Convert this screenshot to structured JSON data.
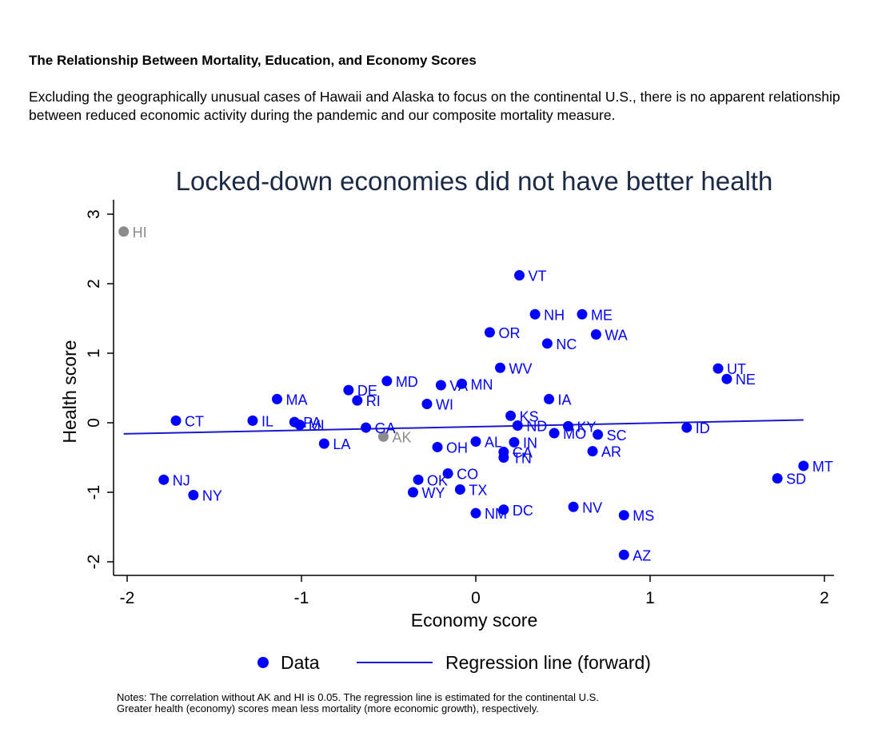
{
  "heading": "The Relationship Between Mortality, Education, and Economy Scores",
  "intro": "Excluding the geographically  unusual cases of Hawaii and Alaska to focus on the continental U.S., there is no apparent relationship between reduced economic activity during the pandemic and our composite mortality measure.",
  "colors": {
    "data": "#0000ff",
    "excluded": "#8c8c8c",
    "line": "#1a1acc",
    "title": "#1a2a44"
  },
  "chart_data": {
    "type": "scatter",
    "title": "Locked-down economies did not have better health",
    "xlabel": "Economy score",
    "ylabel": "Health score",
    "xlim": [
      -2.05,
      2.05
    ],
    "ylim": [
      -2.2,
      3.2
    ],
    "x_ticks": [
      -2,
      -1,
      0,
      1,
      2
    ],
    "x_tick_labels": [
      "-2",
      "-1",
      "0",
      "1",
      "2"
    ],
    "y_ticks": [
      -2,
      -1,
      0,
      1,
      2,
      3
    ],
    "y_tick_labels": [
      "-2",
      "-1",
      "0",
      "1",
      "2",
      "3"
    ],
    "regression_line": {
      "x": [
        -2.02,
        1.88
      ],
      "y": [
        -0.16,
        0.04
      ]
    },
    "legend": {
      "position": "bottom",
      "items": [
        "Data",
        "Regression line (forward)"
      ]
    },
    "points": [
      {
        "label": "HI",
        "x": -2.02,
        "y": 2.75,
        "group": "excluded"
      },
      {
        "label": "AK",
        "x": -0.53,
        "y": -0.2,
        "group": "excluded"
      },
      {
        "label": "VT",
        "x": 0.25,
        "y": 2.12
      },
      {
        "label": "NH",
        "x": 0.34,
        "y": 1.56
      },
      {
        "label": "ME",
        "x": 0.61,
        "y": 1.56
      },
      {
        "label": "OR",
        "x": 0.08,
        "y": 1.3
      },
      {
        "label": "WA",
        "x": 0.69,
        "y": 1.27
      },
      {
        "label": "NC",
        "x": 0.41,
        "y": 1.14
      },
      {
        "label": "WV",
        "x": 0.14,
        "y": 0.79
      },
      {
        "label": "UT",
        "x": 1.39,
        "y": 0.78
      },
      {
        "label": "NE",
        "x": 1.44,
        "y": 0.63
      },
      {
        "label": "MD",
        "x": -0.51,
        "y": 0.6
      },
      {
        "label": "VA",
        "x": -0.2,
        "y": 0.54
      },
      {
        "label": "MN",
        "x": -0.08,
        "y": 0.56
      },
      {
        "label": "DE",
        "x": -0.73,
        "y": 0.47
      },
      {
        "label": "RI",
        "x": -0.68,
        "y": 0.32
      },
      {
        "label": "MA",
        "x": -1.14,
        "y": 0.34
      },
      {
        "label": "WI",
        "x": -0.28,
        "y": 0.27
      },
      {
        "label": "IA",
        "x": 0.42,
        "y": 0.34
      },
      {
        "label": "KS",
        "x": 0.2,
        "y": 0.1
      },
      {
        "label": "ND",
        "x": 0.24,
        "y": -0.04
      },
      {
        "label": "KY",
        "x": 0.53,
        "y": -0.05
      },
      {
        "label": "MO",
        "x": 0.45,
        "y": -0.15
      },
      {
        "label": "SC",
        "x": 0.7,
        "y": -0.17
      },
      {
        "label": "ID",
        "x": 1.21,
        "y": -0.07
      },
      {
        "label": "CT",
        "x": -1.72,
        "y": 0.03
      },
      {
        "label": "IL",
        "x": -1.28,
        "y": 0.03
      },
      {
        "label": "PA",
        "x": -1.04,
        "y": 0.01
      },
      {
        "label": "MI",
        "x": -1.01,
        "y": -0.03
      },
      {
        "label": "GA",
        "x": -0.63,
        "y": -0.07
      },
      {
        "label": "LA",
        "x": -0.87,
        "y": -0.3
      },
      {
        "label": "OH",
        "x": -0.22,
        "y": -0.35
      },
      {
        "label": "AL",
        "x": 0.0,
        "y": -0.27
      },
      {
        "label": "IN",
        "x": 0.22,
        "y": -0.28
      },
      {
        "label": "CA",
        "x": 0.16,
        "y": -0.42
      },
      {
        "label": "TN",
        "x": 0.16,
        "y": -0.5
      },
      {
        "label": "AR",
        "x": 0.67,
        "y": -0.41
      },
      {
        "label": "MT",
        "x": 1.88,
        "y": -0.62
      },
      {
        "label": "SD",
        "x": 1.73,
        "y": -0.8
      },
      {
        "label": "NJ",
        "x": -1.79,
        "y": -0.82
      },
      {
        "label": "NY",
        "x": -1.62,
        "y": -1.04
      },
      {
        "label": "CO",
        "x": -0.16,
        "y": -0.73
      },
      {
        "label": "OK",
        "x": -0.33,
        "y": -0.82
      },
      {
        "label": "WY",
        "x": -0.36,
        "y": -1.0
      },
      {
        "label": "TX",
        "x": -0.09,
        "y": -0.96
      },
      {
        "label": "NM",
        "x": 0.0,
        "y": -1.3
      },
      {
        "label": "DC",
        "x": 0.16,
        "y": -1.25
      },
      {
        "label": "NV",
        "x": 0.56,
        "y": -1.21
      },
      {
        "label": "MS",
        "x": 0.85,
        "y": -1.33
      },
      {
        "label": "AZ",
        "x": 0.85,
        "y": -1.9
      }
    ],
    "notes": [
      "Notes: The correlation without AK and HI is 0.05.  The regression line is estimated for the continental U.S.",
      "Greater health (economy) scores mean less mortality (more economic growth), respectively."
    ]
  }
}
